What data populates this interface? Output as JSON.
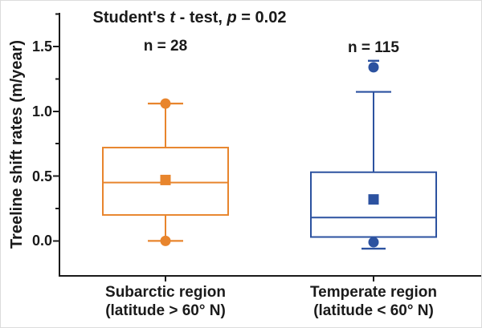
{
  "chart_data": {
    "type": "boxplot",
    "title": "Student's t - test, p = 0.02",
    "title_segments": [
      {
        "text": "Student's ",
        "italic": false
      },
      {
        "text": "t",
        "italic": true
      },
      {
        "text": " - test, ",
        "italic": false
      },
      {
        "text": "p",
        "italic": true
      },
      {
        "text": " = 0.02",
        "italic": false
      }
    ],
    "stat_test": "Student's t-test",
    "p_value": "0.02",
    "ylabel": "Treeline shift rates (m/year)",
    "ylim": [
      -0.27,
      1.76
    ],
    "yticks": [
      0,
      0.5,
      1.0,
      1.5
    ],
    "ytick_labels": [
      "0.0",
      "0.5",
      "1.0",
      "1.5"
    ],
    "yticks_minor": [
      0.25,
      0.75,
      1.25,
      1.75
    ],
    "grid": false,
    "legend": "none",
    "axis_color": "#1a1a1a",
    "background": "#ffffff",
    "groups": [
      {
        "name": "Subarctic region",
        "label_line1": "Subarctic region",
        "label_line2": "(latitude > 60° N)",
        "n_label": "n = 28",
        "n": 28,
        "color": "#E8852D",
        "q1": 0.2,
        "median": 0.45,
        "q3": 0.72,
        "mean": 0.47,
        "whisker_low": 0.0,
        "whisker_high": 1.06,
        "circle_markers": [
          0.0,
          1.06
        ],
        "dash_markers": []
      },
      {
        "name": "Temperate region",
        "label_line1": "Temperate region",
        "label_line2": "(latitude < 60° N)",
        "n_label": "n = 115",
        "n": 115,
        "color": "#2C52A0",
        "q1": 0.03,
        "median": 0.18,
        "q3": 0.53,
        "mean": 0.32,
        "whisker_low": null,
        "whisker_high": 1.15,
        "circle_markers": [
          -0.01,
          1.34
        ],
        "dash_markers": [
          {
            "value": -0.06,
            "half_width": 15
          },
          {
            "value": 1.39,
            "half_width": 7
          }
        ]
      }
    ]
  }
}
